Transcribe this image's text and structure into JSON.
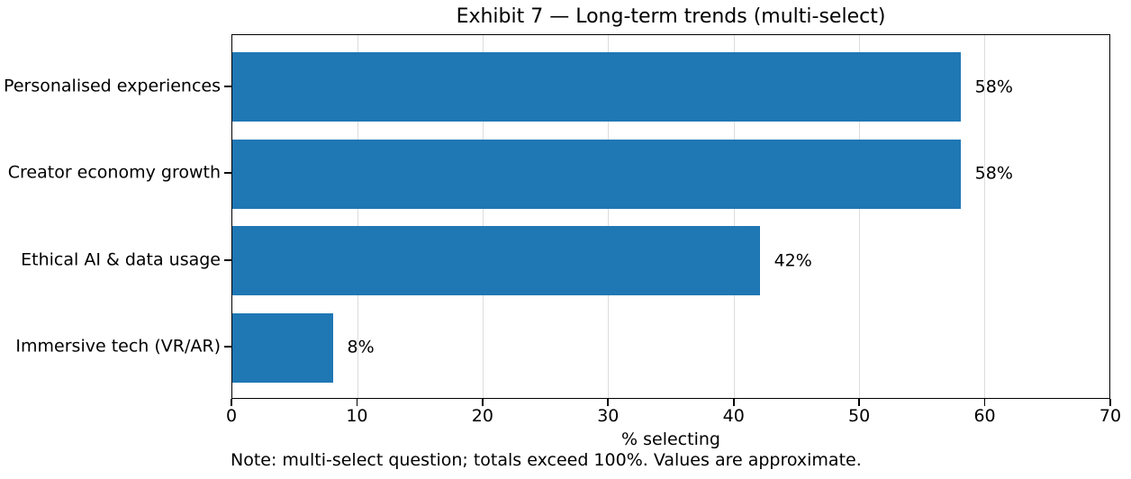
{
  "chart_data": {
    "type": "bar",
    "orientation": "horizontal",
    "title": "Exhibit 7 — Long-term trends (multi-select)",
    "categories": [
      "Personalised experiences",
      "Creator economy growth",
      "Ethical AI & data usage",
      "Immersive tech (VR/AR)"
    ],
    "values": [
      58,
      58,
      42,
      8
    ],
    "value_labels": [
      "58%",
      "58%",
      "42%",
      "8%"
    ],
    "xlabel": "% selecting",
    "xlim": [
      0,
      70
    ],
    "xticks": [
      0,
      10,
      20,
      30,
      40,
      50,
      60,
      70
    ],
    "xtick_labels": [
      "0",
      "10",
      "20",
      "30",
      "40",
      "50",
      "60",
      "70"
    ],
    "grid": "vertical",
    "legend": "none",
    "bar_color": "#1f77b4",
    "grid_color": "#dcdcdc",
    "axis_color": "#000000",
    "background_color": "#ffffff",
    "note": "Note: multi-select question; totals exceed 100%. Values are approximate."
  }
}
